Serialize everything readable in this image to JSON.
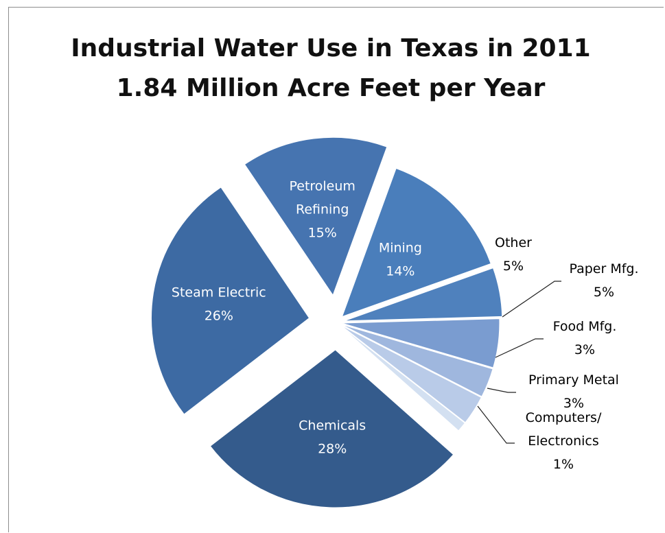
{
  "chart_data": {
    "type": "pie",
    "title": "Industrial Water Use in Texas in 2011",
    "subtitle": "1.84 Million Acre Feet per Year",
    "slices": [
      {
        "label": "Mining",
        "label_lines": [
          "Mining"
        ],
        "value": 14,
        "value_text": "14%",
        "color": "#4a7ebb",
        "label_color": "#ffffff"
      },
      {
        "label": "Other",
        "label_lines": [
          "Other"
        ],
        "value": 5,
        "value_text": "5%",
        "color": "#4f81bd",
        "label_color": "#000000"
      },
      {
        "label": "Paper Mfg.",
        "label_lines": [
          "Paper Mfg."
        ],
        "value": 5,
        "value_text": "5%",
        "color": "#7a9cd0",
        "label_color": "#000000"
      },
      {
        "label": "Food Mfg.",
        "label_lines": [
          "Food Mfg."
        ],
        "value": 3,
        "value_text": "3%",
        "color": "#9fb7de",
        "label_color": "#000000"
      },
      {
        "label": "Primary Metal",
        "label_lines": [
          "Primary Metal"
        ],
        "value": 3,
        "value_text": "3%",
        "color": "#b9cbe8",
        "label_color": "#000000"
      },
      {
        "label": "Computers/Electronics",
        "label_lines": [
          "Computers/",
          "Electronics"
        ],
        "value": 1,
        "value_text": "1%",
        "color": "#d3e0f1",
        "label_color": "#000000"
      },
      {
        "label": "Chemicals",
        "label_lines": [
          "Chemicals"
        ],
        "value": 28,
        "value_text": "28%",
        "color": "#345b8c",
        "label_color": "#ffffff"
      },
      {
        "label": "Steam Electric",
        "label_lines": [
          "Steam Electric"
        ],
        "value": 26,
        "value_text": "26%",
        "color": "#3d6aa3",
        "label_color": "#ffffff"
      },
      {
        "label": "Petroleum Refining",
        "label_lines": [
          "Petroleum",
          "Refining"
        ],
        "value": 15,
        "value_text": "15%",
        "color": "#4674b0",
        "label_color": "#ffffff"
      }
    ]
  }
}
